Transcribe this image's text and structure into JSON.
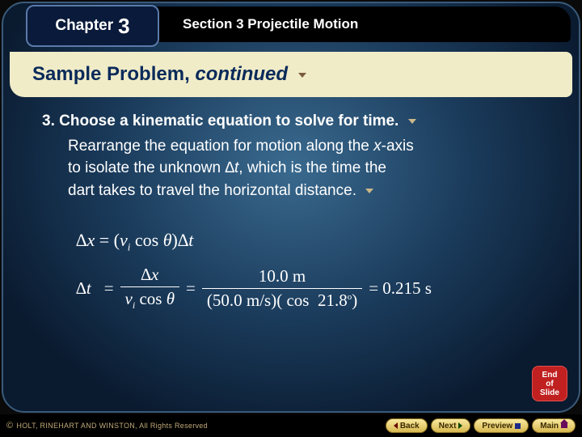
{
  "colors": {
    "bg_gradient_inner": "#3a6a8f",
    "bg_gradient_mid": "#1a3a5a",
    "bg_gradient_outer": "#0a1a2f",
    "title_band": "#f0ecc8",
    "title_text": "#0a2a5a",
    "chapter_tab": "#0a1a3a",
    "end_slide": "#c02020",
    "nav_gold_top": "#f8e8a0",
    "nav_gold_bottom": "#d8b850",
    "copyright": "#c0a878"
  },
  "header": {
    "chapter_word": "Chapter",
    "chapter_number": "3",
    "section_label": "Section 3  Projectile Motion"
  },
  "title": {
    "text_plain": "Sample Problem, ",
    "text_italic": "continued"
  },
  "step": {
    "number": "3",
    "heading_prefix": ". Choose a kinematic equation to solve for time.",
    "body_line1": "Rearrange the equation for motion along the ",
    "body_xaxis": "x",
    "body_line1b": "-axis",
    "body_line2a": "to isolate the unknown ",
    "body_dt": "∆t",
    "body_line2b": ", which is the time the",
    "body_line3": "dart takes to travel the horizontal distance."
  },
  "equations": {
    "eq1": "∆x = (v_i cos θ)∆t",
    "eq2_lhs": "∆t",
    "eq2_frac1_num": "∆x",
    "eq2_frac1_den": "v_i cos θ",
    "eq2_frac2_num": "10.0 m",
    "eq2_frac2_den": "(50.0 m/s)( cos  21.8°)",
    "eq2_result": "= 0.215 s"
  },
  "end_slide": "End of Slide",
  "footer": {
    "copyright": "HOLT, RINEHART AND WINSTON, All Rights Reserved",
    "buttons": {
      "back": "Back",
      "next": "Next",
      "preview": "Preview",
      "main": "Main"
    }
  }
}
